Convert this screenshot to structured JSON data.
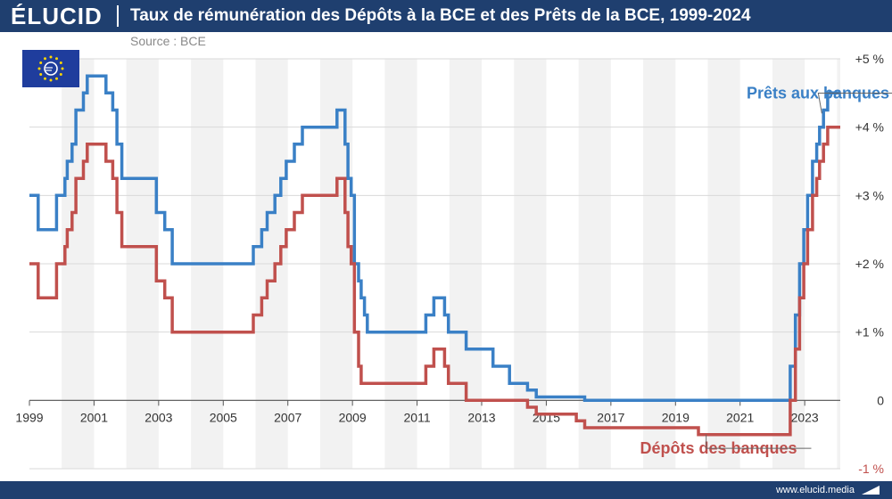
{
  "brand": {
    "logo": "ÉLUCID",
    "url": "www.elucid.media"
  },
  "header": {
    "title": "Taux de rémunération des Dépôts à la BCE et des Prêts de la BCE, 1999-2024",
    "source": "Source : BCE"
  },
  "icons": {
    "flag": "eu-flag-icon",
    "euro": "euro-icon",
    "footer": "elucid-mark-icon"
  },
  "colors": {
    "header_bg": "#1f3f6f",
    "loans": "#3a80c6",
    "deposits": "#c0504d",
    "band": "#f2f2f2",
    "grid": "#d9d9d9",
    "axis_text": "#333333",
    "negative_tick": "#c0504d"
  },
  "chart_data": {
    "type": "line",
    "title": "Taux de rémunération des Dépôts à la BCE et des Prêts de la BCE, 1999-2024",
    "xlabel": "",
    "ylabel": "",
    "xlim": [
      1999,
      2024.1
    ],
    "ylim": [
      -1,
      5
    ],
    "x_ticks": [
      1999,
      2001,
      2003,
      2005,
      2007,
      2009,
      2011,
      2013,
      2015,
      2017,
      2019,
      2021,
      2023
    ],
    "x_tick_labels": [
      "1999",
      "2001",
      "2003",
      "2005",
      "2007",
      "2009",
      "2011",
      "2013",
      "2015",
      "2017",
      "2019",
      "2021",
      "2023"
    ],
    "y_ticks": [
      -1,
      0,
      1,
      2,
      3,
      4,
      5
    ],
    "y_tick_labels": [
      "-1 %",
      "0",
      "+1 %",
      "+2 %",
      "+3 %",
      "+4 %",
      "+5 %"
    ],
    "alternating_year_bands": true,
    "grid": true,
    "series": [
      {
        "name": "Prêts aux banques",
        "color": "#3a80c6",
        "step": true,
        "points": [
          [
            1999.0,
            3.0
          ],
          [
            1999.27,
            2.5
          ],
          [
            1999.84,
            3.0
          ],
          [
            2000.1,
            3.25
          ],
          [
            2000.17,
            3.5
          ],
          [
            2000.32,
            3.75
          ],
          [
            2000.44,
            4.25
          ],
          [
            2000.67,
            4.5
          ],
          [
            2000.79,
            4.75
          ],
          [
            2001.37,
            4.5
          ],
          [
            2001.58,
            4.25
          ],
          [
            2001.71,
            3.75
          ],
          [
            2001.86,
            3.25
          ],
          [
            2002.93,
            2.75
          ],
          [
            2003.19,
            2.5
          ],
          [
            2003.42,
            2.0
          ],
          [
            2005.93,
            2.25
          ],
          [
            2006.19,
            2.5
          ],
          [
            2006.36,
            2.75
          ],
          [
            2006.6,
            3.0
          ],
          [
            2006.78,
            3.25
          ],
          [
            2006.95,
            3.5
          ],
          [
            2007.2,
            3.75
          ],
          [
            2007.45,
            4.0
          ],
          [
            2008.52,
            4.25
          ],
          [
            2008.77,
            3.75
          ],
          [
            2008.86,
            3.25
          ],
          [
            2008.96,
            3.0
          ],
          [
            2009.06,
            2.0
          ],
          [
            2009.19,
            1.75
          ],
          [
            2009.27,
            1.5
          ],
          [
            2009.37,
            1.25
          ],
          [
            2009.46,
            1.0
          ],
          [
            2011.27,
            1.25
          ],
          [
            2011.52,
            1.5
          ],
          [
            2011.85,
            1.25
          ],
          [
            2011.97,
            1.0
          ],
          [
            2012.52,
            0.75
          ],
          [
            2013.35,
            0.5
          ],
          [
            2013.86,
            0.25
          ],
          [
            2014.42,
            0.15
          ],
          [
            2014.69,
            0.05
          ],
          [
            2016.19,
            0.0
          ],
          [
            2022.55,
            0.5
          ],
          [
            2022.71,
            1.25
          ],
          [
            2022.84,
            2.0
          ],
          [
            2022.97,
            2.5
          ],
          [
            2023.09,
            3.0
          ],
          [
            2023.24,
            3.5
          ],
          [
            2023.37,
            3.75
          ],
          [
            2023.46,
            4.0
          ],
          [
            2023.58,
            4.25
          ],
          [
            2023.71,
            4.5
          ],
          [
            2024.1,
            4.5
          ]
        ]
      },
      {
        "name": "Dépôts des banques",
        "color": "#c0504d",
        "step": true,
        "points": [
          [
            1999.0,
            2.0
          ],
          [
            1999.27,
            1.5
          ],
          [
            1999.84,
            2.0
          ],
          [
            2000.1,
            2.25
          ],
          [
            2000.17,
            2.5
          ],
          [
            2000.32,
            2.75
          ],
          [
            2000.44,
            3.25
          ],
          [
            2000.67,
            3.5
          ],
          [
            2000.79,
            3.75
          ],
          [
            2001.37,
            3.5
          ],
          [
            2001.58,
            3.25
          ],
          [
            2001.71,
            2.75
          ],
          [
            2001.86,
            2.25
          ],
          [
            2002.93,
            1.75
          ],
          [
            2003.19,
            1.5
          ],
          [
            2003.42,
            1.0
          ],
          [
            2005.93,
            1.25
          ],
          [
            2006.19,
            1.5
          ],
          [
            2006.36,
            1.75
          ],
          [
            2006.6,
            2.0
          ],
          [
            2006.78,
            2.25
          ],
          [
            2006.95,
            2.5
          ],
          [
            2007.2,
            2.75
          ],
          [
            2007.45,
            3.0
          ],
          [
            2008.52,
            3.25
          ],
          [
            2008.77,
            2.75
          ],
          [
            2008.86,
            2.25
          ],
          [
            2008.96,
            2.0
          ],
          [
            2009.06,
            1.0
          ],
          [
            2009.19,
            0.5
          ],
          [
            2009.27,
            0.25
          ],
          [
            2011.27,
            0.5
          ],
          [
            2011.52,
            0.75
          ],
          [
            2011.85,
            0.5
          ],
          [
            2011.97,
            0.25
          ],
          [
            2012.52,
            0.0
          ],
          [
            2014.42,
            -0.1
          ],
          [
            2014.69,
            -0.2
          ],
          [
            2015.93,
            -0.3
          ],
          [
            2016.19,
            -0.4
          ],
          [
            2019.71,
            -0.5
          ],
          [
            2022.55,
            0.0
          ],
          [
            2022.71,
            0.75
          ],
          [
            2022.84,
            1.5
          ],
          [
            2022.97,
            2.0
          ],
          [
            2023.09,
            2.5
          ],
          [
            2023.24,
            3.0
          ],
          [
            2023.37,
            3.25
          ],
          [
            2023.46,
            3.5
          ],
          [
            2023.58,
            3.75
          ],
          [
            2023.71,
            4.0
          ],
          [
            2024.1,
            4.0
          ]
        ]
      }
    ],
    "annotations": [
      {
        "text": "Prêts aux banques",
        "series": "Prêts aux banques",
        "anchor_x": 2023.53,
        "anchor_y": 4.2,
        "label_x": 2021.2,
        "label_y": 4.42
      },
      {
        "text": "Dépôts des banques",
        "series": "Dépôts des banques",
        "anchor_x": 2019.95,
        "anchor_y": -0.5,
        "label_x": 2017.9,
        "label_y": -0.78
      }
    ]
  }
}
